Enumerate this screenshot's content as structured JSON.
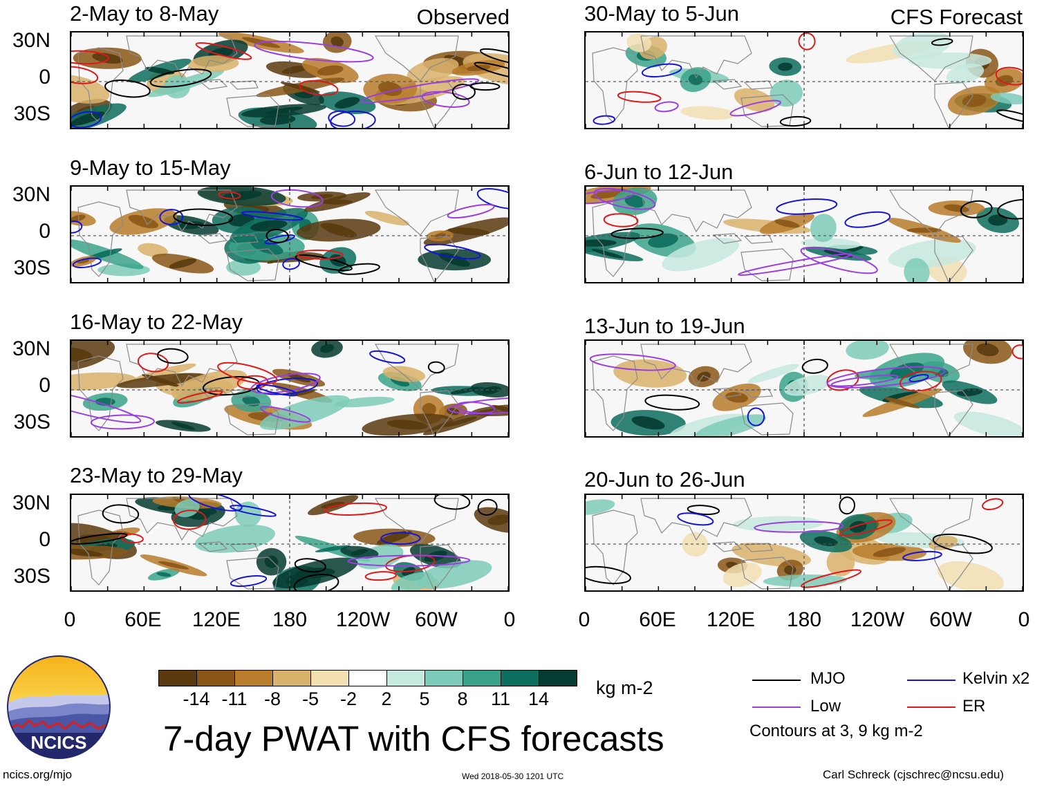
{
  "observed": {
    "label": "Observed",
    "panels": [
      {
        "title": "2-May to 8-May"
      },
      {
        "title": "9-May to 15-May"
      },
      {
        "title": "16-May to 22-May"
      },
      {
        "title": "23-May to 29-May"
      }
    ]
  },
  "forecast": {
    "label": "CFS Forecast",
    "panels": [
      {
        "title": "30-May to 5-Jun"
      },
      {
        "title": "6-Jun to 12-Jun"
      },
      {
        "title": "13-Jun to 19-Jun"
      },
      {
        "title": "20-Jun to 26-Jun"
      }
    ]
  },
  "lat_labels": [
    "30N",
    "0",
    "30S"
  ],
  "lon_labels": [
    "0",
    "60E",
    "120E",
    "180",
    "120W",
    "60W",
    "0"
  ],
  "colorbar": {
    "units": "kg m-2",
    "tick_labels": [
      "-14",
      "-11",
      "-8",
      "-5",
      "-2",
      "2",
      "5",
      "8",
      "11",
      "14"
    ],
    "colors": [
      "#5a3a0e",
      "#8a5617",
      "#b97d2c",
      "#d9b26b",
      "#f2dfb2",
      "#ffffff",
      "#c5e9df",
      "#7ccbb8",
      "#39a38a",
      "#0d6e5d",
      "#053b30"
    ]
  },
  "legend": {
    "mjo": "MJO",
    "kelvin": "Kelvin x2",
    "low": "Low",
    "er": "ER",
    "note": "Contours at 3, 9 kg m-2",
    "colors": {
      "mjo": "#000000",
      "kelvin": "#1414d8",
      "low": "#9a3ee0",
      "er": "#e01818"
    }
  },
  "logo": {
    "text": "NCICS"
  },
  "main_title": "7-day PWAT with CFS forecasts",
  "footer": {
    "url": "ncics.org/mjo",
    "timestamp": "Wed 2018-05-30 1201 UTC",
    "author": "Carl Schreck (cjschrec@ncsu.edu)"
  }
}
